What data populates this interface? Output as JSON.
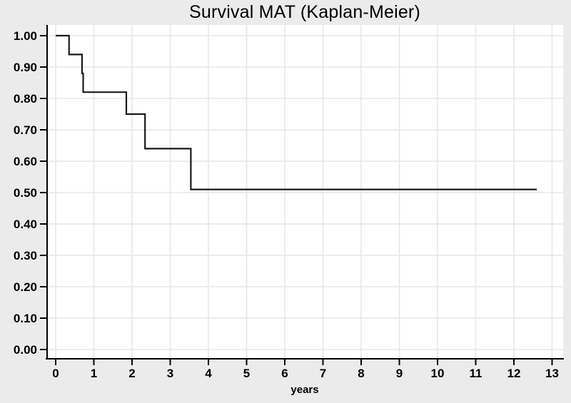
{
  "chart_data": {
    "type": "line",
    "chart_style": "kaplan-meier-step",
    "title": "Survival MAT (Kaplan-Meier)",
    "xlabel": "years",
    "ylabel": "",
    "xlim": [
      0,
      13
    ],
    "ylim": [
      0.0,
      1.0
    ],
    "grid": true,
    "legend_position": "none",
    "x_ticks": [
      0,
      1,
      2,
      3,
      4,
      5,
      6,
      7,
      8,
      9,
      10,
      11,
      12,
      13
    ],
    "y_ticks": [
      {
        "value": 0.0,
        "label": "0.00"
      },
      {
        "value": 0.1,
        "label": "0.10"
      },
      {
        "value": 0.2,
        "label": "0.20"
      },
      {
        "value": 0.3,
        "label": "0.30"
      },
      {
        "value": 0.4,
        "label": "0.40"
      },
      {
        "value": 0.5,
        "label": "0.50"
      },
      {
        "value": 0.6,
        "label": "0.60"
      },
      {
        "value": 0.7,
        "label": "0.70"
      },
      {
        "value": 0.8,
        "label": "0.80"
      },
      {
        "value": 0.9,
        "label": "0.90"
      },
      {
        "value": 1.0,
        "label": "1.00"
      }
    ],
    "series": [
      {
        "name": "Survival MAT",
        "steps": [
          {
            "time": 0.0,
            "survival": 1.0
          },
          {
            "time": 0.35,
            "survival": 0.94
          },
          {
            "time": 0.69,
            "survival": 0.88
          },
          {
            "time": 0.72,
            "survival": 0.82
          },
          {
            "time": 1.85,
            "survival": 0.75
          },
          {
            "time": 2.34,
            "survival": 0.64
          },
          {
            "time": 3.54,
            "survival": 0.51
          }
        ],
        "end_time": 12.6
      }
    ]
  },
  "colors": {
    "background": "#ebebeb",
    "plot_background": "#ffffff",
    "gridline": "#e7e7e7",
    "axis": "#000000",
    "curve": "#1a1a1a",
    "text": "#000000"
  }
}
